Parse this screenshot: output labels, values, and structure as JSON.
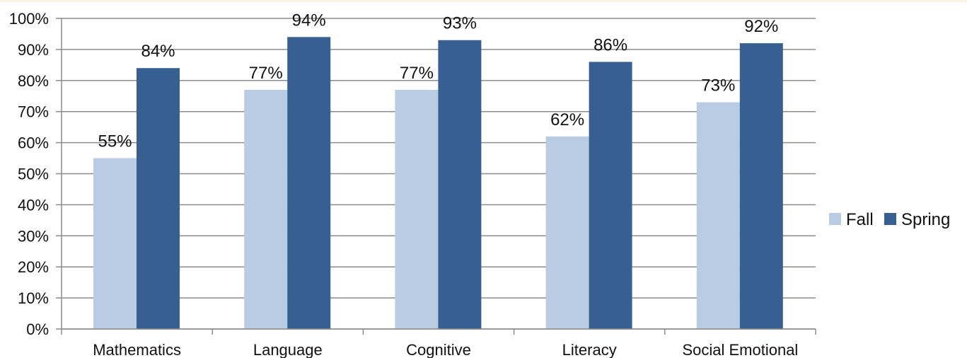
{
  "chart_data": {
    "type": "bar",
    "title": "",
    "xlabel": "",
    "ylabel": "",
    "categories": [
      "Mathematics",
      "Language",
      "Cognitive",
      "Literacy",
      "Social Emotional"
    ],
    "series": [
      {
        "name": "Fall",
        "values": [
          55,
          77,
          77,
          62,
          73
        ],
        "color": "#b9cce4",
        "labels": [
          "55%",
          "77%",
          "77%",
          "62%",
          "73%"
        ]
      },
      {
        "name": "Spring",
        "values": [
          84,
          94,
          93,
          86,
          92
        ],
        "color": "#375f92",
        "labels": [
          "84%",
          "94%",
          "93%",
          "86%",
          "92%"
        ]
      }
    ],
    "ylim": [
      0,
      100
    ],
    "yticks": [
      0,
      10,
      20,
      30,
      40,
      50,
      60,
      70,
      80,
      90,
      100
    ],
    "ytick_labels": [
      "0%",
      "10%",
      "20%",
      "30%",
      "40%",
      "50%",
      "60%",
      "70%",
      "80%",
      "90%",
      "100%"
    ],
    "grid": true,
    "legend_position": "right",
    "gridline_color": "#8c8c8c",
    "axis_color": "#8c8c8c"
  }
}
